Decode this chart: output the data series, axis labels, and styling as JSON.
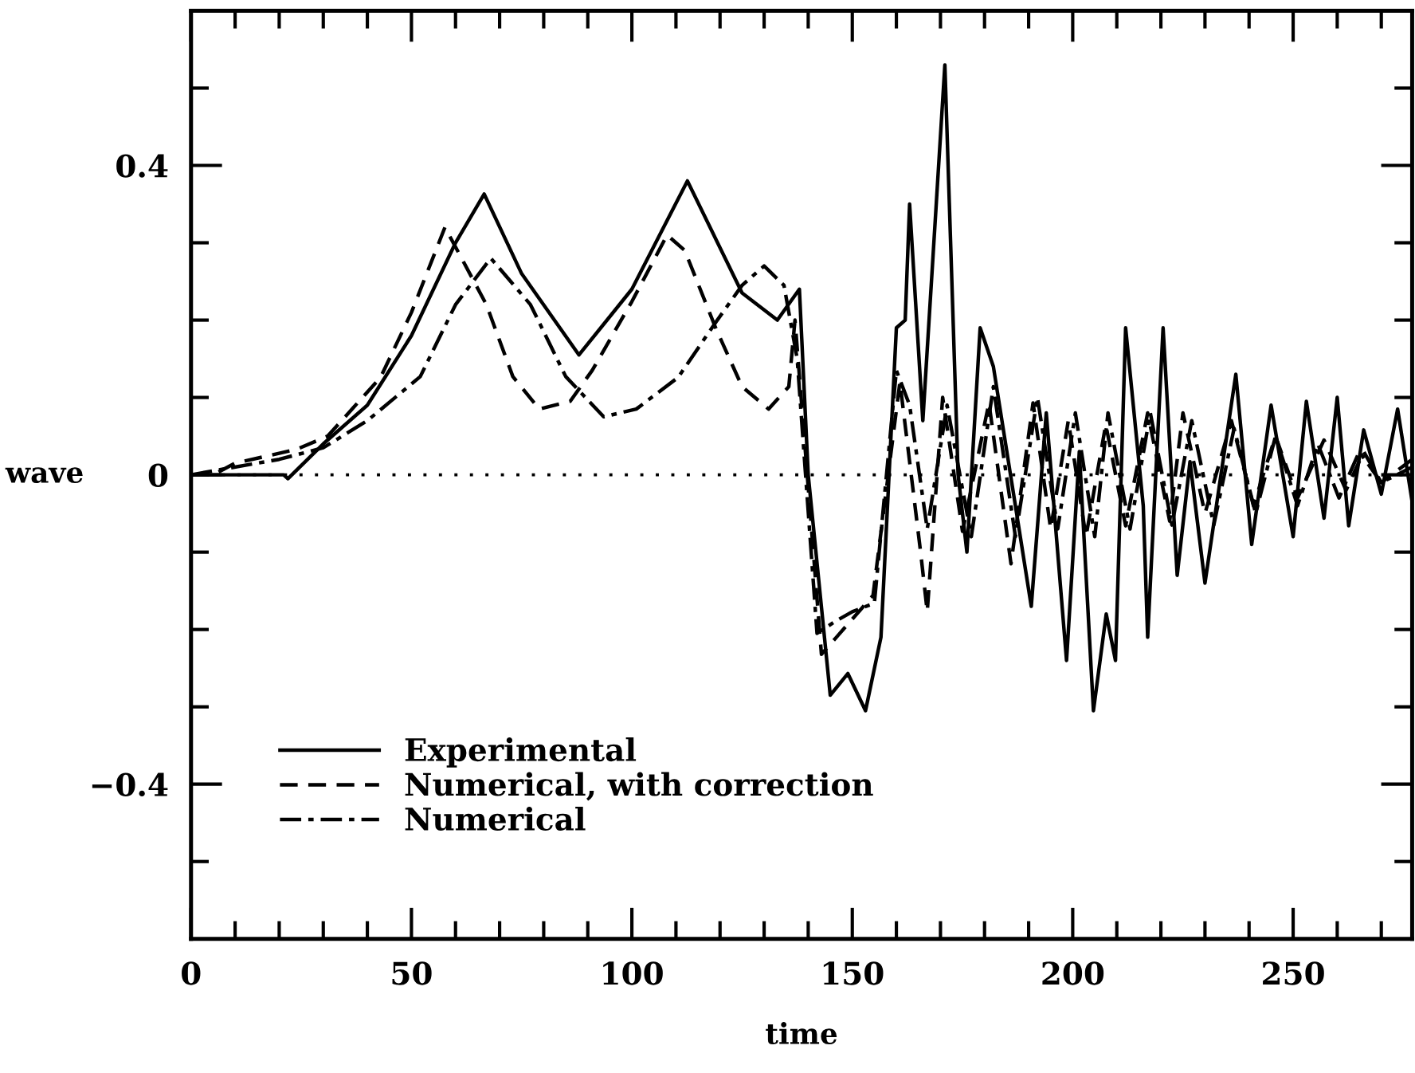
{
  "chart_data": {
    "type": "line",
    "xlabel": "time",
    "ylabel": "wave",
    "xlim": [
      0,
      277
    ],
    "ylim": [
      -0.6,
      0.6
    ],
    "xticks": [
      0,
      {
        "value": 10,
        "label": null
      },
      {
        "value": 20,
        "label": null
      },
      {
        "value": 30,
        "label": null
      },
      {
        "value": 40,
        "label": null
      },
      50,
      {
        "value": 60,
        "label": null
      },
      {
        "value": 70,
        "label": null
      },
      {
        "value": 80,
        "label": null
      },
      {
        "value": 90,
        "label": null
      },
      100,
      {
        "value": 110,
        "label": null
      },
      {
        "value": 120,
        "label": null
      },
      {
        "value": 130,
        "label": null
      },
      {
        "value": 140,
        "label": null
      },
      150,
      {
        "value": 160,
        "label": null
      },
      {
        "value": 170,
        "label": null
      },
      {
        "value": 180,
        "label": null
      },
      {
        "value": 190,
        "label": null
      },
      200,
      {
        "value": 210,
        "label": null
      },
      {
        "value": 220,
        "label": null
      },
      {
        "value": 230,
        "label": null
      },
      {
        "value": 240,
        "label": null
      },
      250,
      {
        "value": 260,
        "label": null
      },
      {
        "value": 270,
        "label": null
      }
    ],
    "yticks": [
      {
        "value": -0.5,
        "label": null
      },
      {
        "value": -0.4,
        "label": "−0.4"
      },
      {
        "value": -0.3,
        "label": null
      },
      {
        "value": -0.2,
        "label": null
      },
      {
        "value": -0.1,
        "label": null
      },
      0,
      {
        "value": 0.1,
        "label": null
      },
      {
        "value": 0.2,
        "label": null
      },
      {
        "value": 0.3,
        "label": null
      },
      0.4,
      {
        "value": 0.5,
        "label": null
      }
    ],
    "legend": "bottom left",
    "grid": false,
    "ref_lines": [
      {
        "axis": "y",
        "value": 0,
        "line_style": "dotted",
        "color": "#000000"
      }
    ],
    "series": [
      {
        "name": "Experimental",
        "color": "#000000",
        "line_style": "solid",
        "x": [
          0,
          10,
          21,
          22,
          30,
          40,
          50,
          60,
          66.5,
          75,
          88,
          100,
          112.6,
          125,
          133,
          138,
          140,
          145,
          149,
          153,
          156.5,
          160,
          162,
          163,
          166,
          171,
          174,
          176,
          179,
          182,
          187,
          190.6,
          194,
          198.6,
          201.5,
          204.7,
          207.6,
          209.7,
          212,
          216,
          217,
          220.5,
          223.7,
          226.6,
          230,
          237,
          240.6,
          245,
          250,
          253,
          257,
          260,
          262.6,
          266,
          270,
          273.7,
          277
        ],
        "values": [
          0,
          0,
          0,
          -0.005,
          0.04,
          0.09,
          0.18,
          0.3,
          0.363,
          0.26,
          0.155,
          0.24,
          0.38,
          0.235,
          0.2,
          0.24,
          0,
          -0.285,
          -0.257,
          -0.305,
          -0.21,
          0.19,
          0.2,
          0.35,
          0.07,
          0.53,
          0,
          -0.1,
          0.19,
          0.14,
          -0.04,
          -0.17,
          0.08,
          -0.24,
          0.03,
          -0.305,
          -0.18,
          -0.24,
          0.19,
          -0.04,
          -0.21,
          0.19,
          -0.13,
          0.017,
          -0.14,
          0.13,
          -0.09,
          0.09,
          -0.08,
          0.095,
          -0.056,
          0.1,
          -0.066,
          0.058,
          -0.025,
          0.085,
          -0.035
        ]
      },
      {
        "name": "Numerical, with correction",
        "color": "#000000",
        "line_style": "dashed",
        "x": [
          0,
          5,
          10,
          24,
          31,
          43,
          50,
          57.6,
          67,
          73,
          79,
          86,
          91,
          100,
          108,
          112,
          119,
          125,
          131,
          135.6,
          137,
          143,
          146.4,
          154.7,
          160.8,
          165.5,
          167,
          170.5,
          175,
          181,
          186,
          191,
          195,
          199,
          203,
          207.5,
          212,
          217,
          222,
          225,
          230,
          236,
          241,
          246,
          251,
          257,
          262,
          266,
          270,
          277
        ],
        "values": [
          0,
          0,
          0.015,
          0.033,
          0.05,
          0.126,
          0.21,
          0.32,
          0.22,
          0.127,
          0.085,
          0.095,
          0.135,
          0.224,
          0.31,
          0.29,
          0.19,
          0.114,
          0.085,
          0.114,
          0.2,
          -0.232,
          -0.21,
          -0.156,
          0.12,
          -0.1,
          -0.177,
          0.1,
          -0.073,
          0.093,
          -0.115,
          0.093,
          -0.07,
          0.07,
          -0.08,
          0.065,
          -0.066,
          0.08,
          -0.06,
          0.08,
          -0.05,
          0.07,
          -0.04,
          0.05,
          -0.03,
          0.045,
          -0.02,
          0.03,
          -0.01,
          0.02
        ]
      },
      {
        "name": "Numerical",
        "color": "#000000",
        "line_style": "dashdot",
        "x": [
          0,
          20,
          30,
          40,
          52,
          60,
          68,
          77,
          85,
          93.6,
          101,
          110.5,
          119,
          125,
          130,
          134.5,
          137.5,
          142,
          146,
          150,
          155,
          160,
          163,
          167,
          171.5,
          177,
          182,
          187,
          192,
          196.6,
          200.6,
          205,
          208,
          213,
          217.6,
          222.5,
          227,
          232,
          236.6,
          241.5,
          246,
          251,
          255.6,
          260.4,
          265,
          270,
          277
        ],
        "values": [
          0,
          0.02,
          0.035,
          0.07,
          0.127,
          0.22,
          0.28,
          0.22,
          0.127,
          0.075,
          0.085,
          0.126,
          0.197,
          0.245,
          0.27,
          0.245,
          0.15,
          -0.205,
          -0.19,
          -0.177,
          -0.166,
          0.135,
          0.09,
          -0.07,
          0.09,
          -0.08,
          0.114,
          -0.08,
          0.1,
          -0.07,
          0.08,
          -0.08,
          0.08,
          -0.07,
          0.08,
          -0.065,
          0.07,
          -0.065,
          0.06,
          -0.05,
          0.05,
          -0.04,
          0.04,
          -0.03,
          0.03,
          -0.01,
          0.01
        ]
      }
    ]
  }
}
